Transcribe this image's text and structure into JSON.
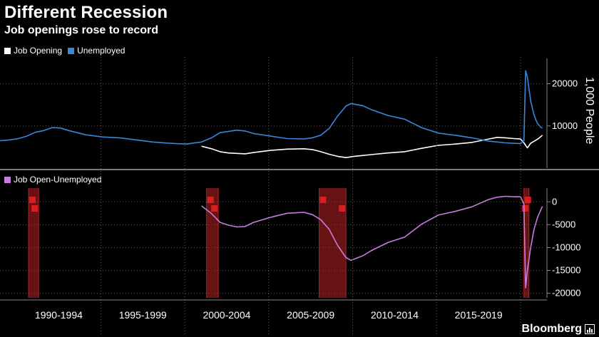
{
  "header": {
    "title": "Different Recession",
    "subtitle": "Job openings rose to record"
  },
  "brand": {
    "name": "Bloomberg"
  },
  "colors": {
    "background": "#000000",
    "job_opening": "#ffffff",
    "unemployed": "#3a86d8",
    "diff": "#c77ddc",
    "recession": "#8a1a1a",
    "recession_edge": "#b32020",
    "grid": "#555555"
  },
  "chart_data": [
    {
      "type": "line",
      "title": "",
      "ylabel": "1,000 People",
      "ylim": [
        0,
        26000
      ],
      "yticks": [
        10000,
        20000
      ],
      "ytick_labels": [
        "10000",
        "20000"
      ],
      "xlim": [
        1988.9,
        2021.3
      ],
      "legend": "top-left",
      "series": [
        {
          "name": "Job Opening",
          "color": "#ffffff",
          "x": [
            2000.9,
            2001.5,
            2002.0,
            2002.5,
            2003.0,
            2003.5,
            2004.0,
            2005.0,
            2006.0,
            2007.0,
            2007.5,
            2008.0,
            2008.5,
            2009.0,
            2009.5,
            2010.0,
            2011.0,
            2012.0,
            2013.0,
            2014.0,
            2015.0,
            2016.0,
            2017.0,
            2018.0,
            2018.5,
            2019.0,
            2019.5,
            2019.9,
            2020.1,
            2020.3,
            2020.5,
            2020.8,
            2021.0,
            2021.2
          ],
          "y": [
            5200,
            4600,
            3900,
            3600,
            3500,
            3400,
            3700,
            4200,
            4500,
            4600,
            4400,
            3900,
            3300,
            2800,
            2500,
            2800,
            3200,
            3600,
            3900,
            4700,
            5400,
            5700,
            6100,
            6900,
            7300,
            7200,
            7000,
            6900,
            6000,
            4800,
            5900,
            6600,
            7100,
            7800
          ]
        },
        {
          "name": "Unemployed",
          "color": "#3a86d8",
          "x": [
            1988.9,
            1989.5,
            1990.0,
            1990.5,
            1991.0,
            1991.5,
            1992.0,
            1992.5,
            1993.0,
            1994.0,
            1995.0,
            1996.0,
            1997.0,
            1998.0,
            1999.0,
            2000.0,
            2000.9,
            2001.5,
            2002.0,
            2002.5,
            2003.0,
            2003.5,
            2004.0,
            2005.0,
            2006.0,
            2007.0,
            2007.5,
            2008.0,
            2008.5,
            2009.0,
            2009.5,
            2009.8,
            2010.5,
            2011.0,
            2012.0,
            2013.0,
            2014.0,
            2015.0,
            2016.0,
            2017.0,
            2018.0,
            2019.0,
            2019.9,
            2020.1,
            2020.2,
            2020.3,
            2020.5,
            2020.7,
            2020.9,
            2021.1,
            2021.2
          ],
          "y": [
            6500,
            6700,
            7000,
            7600,
            8500,
            8900,
            9600,
            9500,
            8900,
            7900,
            7400,
            7200,
            6700,
            6200,
            5900,
            5700,
            6200,
            7200,
            8400,
            8700,
            9000,
            8800,
            8200,
            7600,
            7000,
            6900,
            7200,
            7800,
            9400,
            12300,
            14700,
            15300,
            14800,
            13900,
            12500,
            11600,
            9600,
            8300,
            7800,
            7200,
            6400,
            6000,
            5800,
            6500,
            23100,
            21600,
            15900,
            12600,
            10600,
            9700,
            9500
          ]
        }
      ]
    },
    {
      "type": "line",
      "title": "",
      "ylim": [
        -21000,
        3000
      ],
      "yticks": [
        0,
        -5000,
        -10000,
        -15000,
        -20000
      ],
      "ytick_labels": [
        "0",
        "-5000",
        "-10000",
        "-15000",
        "-20000"
      ],
      "xlim": [
        1988.9,
        2021.3
      ],
      "legend": "top-left",
      "x_category_labels": [
        "1990-1994",
        "1995-1999",
        "2000-2004",
        "2005-2009",
        "2010-2014",
        "2015-2019"
      ],
      "recessions": [
        [
          1990.6,
          1991.2
        ],
        [
          2001.2,
          2001.9
        ],
        [
          2007.9,
          2009.5
        ],
        [
          2020.1,
          2020.4
        ]
      ],
      "series": [
        {
          "name": "Job Open-Unemployed",
          "color": "#c77ddc",
          "x": [
            2000.9,
            2001.5,
            2002.0,
            2002.5,
            2003.0,
            2003.5,
            2004.0,
            2005.0,
            2006.0,
            2007.0,
            2007.5,
            2008.0,
            2008.5,
            2009.0,
            2009.5,
            2009.8,
            2010.5,
            2011.0,
            2012.0,
            2013.0,
            2014.0,
            2015.0,
            2016.0,
            2017.0,
            2018.0,
            2018.5,
            2019.0,
            2019.5,
            2019.9,
            2020.1,
            2020.2,
            2020.3,
            2020.5,
            2020.7,
            2020.9,
            2021.1,
            2021.2
          ],
          "y": [
            -900,
            -2600,
            -4500,
            -5100,
            -5500,
            -5400,
            -4500,
            -3400,
            -2500,
            -2300,
            -2800,
            -3900,
            -6000,
            -9500,
            -12200,
            -12800,
            -11800,
            -10700,
            -8900,
            -7700,
            -4900,
            -2900,
            -2100,
            -1100,
            500,
            1000,
            1200,
            1100,
            1100,
            -500,
            -18800,
            -15000,
            -10000,
            -6000,
            -3500,
            -1800,
            -1000
          ]
        }
      ]
    }
  ]
}
